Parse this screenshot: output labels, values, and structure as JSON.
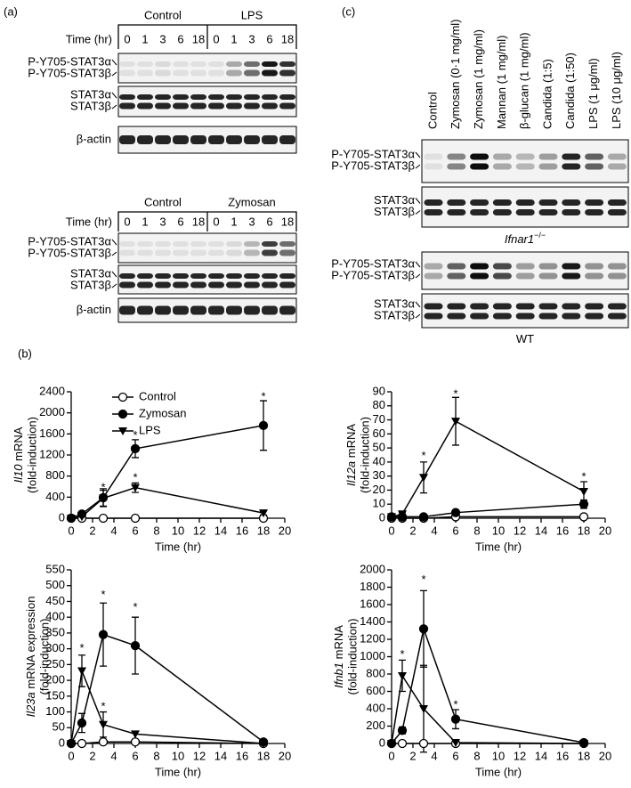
{
  "panel_a": {
    "label": "(a)",
    "blots": [
      {
        "groups": [
          "Control",
          "LPS"
        ],
        "time_label": "Time (hr)",
        "times": [
          "0",
          "1",
          "3",
          "6",
          "18",
          "0",
          "1",
          "3",
          "6",
          "18"
        ],
        "rows": [
          [
            "P-Y705-STAT3α",
            "P-Y705-STAT3β"
          ],
          [
            "STAT3α",
            "STAT3β"
          ],
          [
            "β-actin"
          ]
        ]
      },
      {
        "groups": [
          "Control",
          "Zymosan"
        ],
        "time_label": "Time (hr)",
        "times": [
          "0",
          "1",
          "3",
          "6",
          "18",
          "0",
          "1",
          "3",
          "6",
          "18"
        ],
        "rows": [
          [
            "P-Y705-STAT3α",
            "P-Y705-STAT3β"
          ],
          [
            "STAT3α",
            "STAT3β"
          ],
          [
            "β-actin"
          ]
        ]
      }
    ]
  },
  "panel_b": {
    "label": "(b)"
  },
  "panel_c": {
    "label": "(c)",
    "lanes": [
      "Control",
      "Zymosan (0·1 mg/ml)",
      "Zymosan (1 mg/ml)",
      "Mannan (1 mg/ml)",
      "β-glucan (1 mg/ml)",
      "Candida (1:5)",
      "Candida (1:50)",
      "LPS (1 μg/ml)",
      "LPS (10 μg/ml)"
    ],
    "blots": [
      {
        "rows": [
          [
            "P-Y705-STAT3α",
            "P-Y705-STAT3β"
          ],
          [
            "STAT3α",
            "STAT3β"
          ]
        ],
        "genotype": {
          "gene": "Ifnar1",
          "sup": "−/−"
        }
      },
      {
        "rows": [
          [
            "P-Y705-STAT3α",
            "P-Y705-STAT3β"
          ],
          [
            "STAT3α",
            "STAT3β"
          ]
        ],
        "genotype": {
          "gene": "WT",
          "sup": ""
        }
      }
    ]
  },
  "chart_data": [
    {
      "type": "line",
      "ylabel": {
        "gene": "Il10",
        "text": " mRNA",
        "line2": "(fold-induction)"
      },
      "xlabel": "Time (hr)",
      "x": [
        0,
        1,
        3,
        6,
        18
      ],
      "xlim": [
        0,
        20
      ],
      "xticks": [
        0,
        2,
        4,
        6,
        8,
        10,
        12,
        14,
        16,
        18,
        20
      ],
      "ylim": [
        0,
        2400
      ],
      "yticks": [
        0,
        400,
        800,
        1200,
        1600,
        2000,
        2400
      ],
      "legend": true,
      "series": [
        {
          "name": "Control",
          "color": "#000000",
          "marker": "circle-open",
          "values": [
            0,
            0,
            0,
            0,
            0
          ],
          "errors": [
            0,
            0,
            0,
            0,
            0
          ]
        },
        {
          "name": "Zymosan",
          "color": "#000000",
          "marker": "circle",
          "values": [
            0,
            80,
            390,
            1320,
            1760
          ],
          "errors": [
            0,
            20,
            170,
            170,
            470
          ]
        },
        {
          "name": "LPS",
          "color": "#000000",
          "marker": "triangle-down",
          "values": [
            0,
            30,
            380,
            580,
            100
          ],
          "errors": [
            0,
            10,
            150,
            90,
            40
          ]
        }
      ],
      "annotations": [
        {
          "text": "*",
          "x": 3,
          "y": 570
        },
        {
          "text": "*",
          "x": 6,
          "y": 1560
        },
        {
          "text": "*",
          "x": 6,
          "y": 760
        },
        {
          "text": "*",
          "x": 18,
          "y": 2300
        }
      ]
    },
    {
      "type": "line",
      "ylabel": {
        "gene": "Il12a",
        "text": " mRNA",
        "line2": "(fold-induction)"
      },
      "xlabel": "Time (hr)",
      "x": [
        0,
        1,
        3,
        6,
        18
      ],
      "xlim": [
        0,
        20
      ],
      "xticks": [
        0,
        2,
        4,
        6,
        8,
        10,
        12,
        14,
        16,
        18,
        20
      ],
      "ylim": [
        0,
        90
      ],
      "yticks": [
        0,
        10,
        20,
        30,
        40,
        50,
        60,
        70,
        80,
        90
      ],
      "legend": false,
      "series": [
        {
          "color": "#000000",
          "marker": "circle-open",
          "values": [
            0,
            0,
            0,
            1,
            1
          ],
          "errors": [
            0,
            0,
            0,
            0,
            0
          ]
        },
        {
          "color": "#000000",
          "marker": "circle",
          "values": [
            1,
            1,
            1,
            4,
            10
          ],
          "errors": [
            0,
            0,
            0,
            1,
            3
          ]
        },
        {
          "color": "#000000",
          "marker": "triangle-down",
          "values": [
            1,
            3,
            29,
            69,
            19
          ],
          "errors": [
            0,
            1,
            11,
            17,
            7
          ]
        }
      ],
      "annotations": [
        {
          "text": "*",
          "x": 3,
          "y": 44
        },
        {
          "text": "*",
          "x": 6,
          "y": 88
        },
        {
          "text": "*",
          "x": 18,
          "y": 29
        }
      ]
    },
    {
      "type": "line",
      "ylabel": {
        "gene": "Il23a",
        "text": " mRNA expression",
        "line2": "(fold-induction)"
      },
      "xlabel": "Time (hr)",
      "x": [
        0,
        1,
        3,
        6,
        18
      ],
      "xlim": [
        0,
        20
      ],
      "xticks": [
        0,
        2,
        4,
        6,
        8,
        10,
        12,
        14,
        16,
        18,
        20
      ],
      "ylim": [
        0,
        550
      ],
      "yticks": [
        0,
        50,
        100,
        150,
        200,
        250,
        300,
        350,
        400,
        450,
        500,
        550
      ],
      "legend": false,
      "series": [
        {
          "color": "#000000",
          "marker": "circle-open",
          "values": [
            0,
            0,
            5,
            5,
            0
          ],
          "errors": [
            0,
            0,
            0,
            0,
            0
          ]
        },
        {
          "color": "#000000",
          "marker": "circle",
          "values": [
            0,
            65,
            345,
            310,
            5
          ],
          "errors": [
            0,
            30,
            100,
            90,
            0
          ]
        },
        {
          "color": "#000000",
          "marker": "triangle-down",
          "values": [
            0,
            230,
            60,
            30,
            0
          ],
          "errors": [
            0,
            50,
            40,
            0,
            0
          ]
        }
      ],
      "annotations": [
        {
          "text": "*",
          "x": 1,
          "y": 300
        },
        {
          "text": "*",
          "x": 3,
          "y": 470
        },
        {
          "text": "*",
          "x": 3,
          "y": 115
        },
        {
          "text": "*",
          "x": 6,
          "y": 430
        }
      ]
    },
    {
      "type": "line",
      "ylabel": {
        "gene": "Ifnb1",
        "text": " mRNA",
        "line2": "(fold-induction)"
      },
      "xlabel": "Time (hr)",
      "x": [
        0,
        1,
        3,
        6,
        18
      ],
      "xlim": [
        0,
        20
      ],
      "xticks": [
        0,
        2,
        4,
        6,
        8,
        10,
        12,
        14,
        16,
        18,
        20
      ],
      "ylim": [
        0,
        2000
      ],
      "yticks": [
        0,
        200,
        400,
        600,
        800,
        1000,
        1200,
        1400,
        1600,
        1800,
        2000
      ],
      "legend": false,
      "series": [
        {
          "color": "#000000",
          "marker": "circle-open",
          "values": [
            0,
            0,
            0,
            0,
            0
          ],
          "errors": [
            0,
            0,
            0,
            0,
            0
          ]
        },
        {
          "color": "#000000",
          "marker": "circle",
          "values": [
            0,
            150,
            1320,
            280,
            10
          ],
          "errors": [
            0,
            40,
            440,
            110,
            0
          ]
        },
        {
          "color": "#000000",
          "marker": "triangle-down",
          "values": [
            0,
            780,
            400,
            10,
            0
          ],
          "errors": [
            0,
            180,
            500,
            0,
            0
          ]
        }
      ],
      "annotations": [
        {
          "text": "*",
          "x": 1,
          "y": 1020
        },
        {
          "text": "*",
          "x": 3,
          "y": 1880
        },
        {
          "text": "*",
          "x": 6,
          "y": 440
        }
      ]
    }
  ]
}
